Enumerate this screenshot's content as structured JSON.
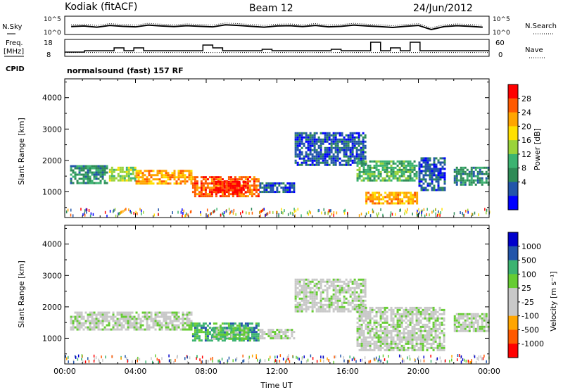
{
  "header": {
    "station": "Kodiak (fitACF)",
    "beam": "Beam 12",
    "date": "24/Jun/2012"
  },
  "top_panels": {
    "nsky_label": "N.Sky",
    "nsearch_label": "N.Search",
    "nsky_ticks": [
      "10^5",
      "10^0"
    ],
    "nsearch_ticks": [
      "10^5",
      "10^0"
    ],
    "freq_label": "Freq.",
    "freq_unit": "[MHz]",
    "freq_ticks": [
      "18",
      "8"
    ],
    "nave_label": "Nave",
    "nave_ticks": [
      "60",
      "0"
    ],
    "cpid_label": "CPID",
    "cpid_text": "normalsound (fast) 157 RF",
    "nsky_trace": [
      2.2,
      2.4,
      2.0,
      2.6,
      2.3,
      2.1,
      2.7,
      2.4,
      2.2,
      2.5,
      2.3,
      2.1,
      2.8,
      2.6,
      2.3,
      2.0,
      2.4,
      2.5,
      2.2,
      2.6,
      2.1,
      2.3,
      2.7,
      2.4,
      2.2,
      1.9,
      2.3,
      2.6,
      1.2,
      2.2,
      2.5,
      2.3,
      2.0
    ],
    "freq_trace_mhz": [
      10,
      10,
      11,
      11,
      11,
      13,
      11,
      13,
      11,
      11,
      11,
      11,
      11,
      11,
      15,
      13,
      11,
      11,
      11,
      11,
      12,
      11,
      11,
      11,
      11,
      11,
      11,
      12,
      11,
      11,
      11,
      17,
      11,
      13,
      11,
      17,
      11,
      11,
      11,
      11,
      11,
      11,
      11
    ],
    "nave_trace": [
      10,
      10,
      10,
      10,
      10,
      10,
      10,
      10,
      10,
      10,
      10,
      10,
      10,
      10,
      10,
      10,
      10,
      10,
      10,
      10,
      10,
      10,
      10,
      10,
      10,
      10,
      10,
      10,
      10,
      10,
      10,
      10,
      10,
      10,
      10,
      10,
      10,
      10,
      10,
      10,
      10,
      10,
      10
    ]
  },
  "chart_data": [
    {
      "type": "heatmap",
      "name": "power-panel",
      "ylabel": "Slant Range [km]",
      "xlabel": "",
      "x_ticks": [
        "00:00",
        "04:00",
        "08:00",
        "12:00",
        "16:00",
        "20:00",
        "00:00"
      ],
      "x_range_hours": [
        0,
        24
      ],
      "y_ticks": [
        1000,
        2000,
        3000,
        4000
      ],
      "ylim": [
        180,
        4600
      ],
      "colorbar": {
        "label": "Power [dB]",
        "ticks": [
          "28",
          "24",
          "20",
          "16",
          "12",
          "8",
          "4"
        ],
        "colors": [
          "#ff0000",
          "#ff5a00",
          "#ffa500",
          "#ffe000",
          "#9ad33a",
          "#3cb371",
          "#2e8b57",
          "#2255aa",
          "#0000ff"
        ]
      },
      "regions": [
        {
          "t0": 0.3,
          "t1": 2.5,
          "r0": 1250,
          "r1": 1850,
          "level": 6
        },
        {
          "t0": 2.5,
          "t1": 4.0,
          "r0": 1300,
          "r1": 1800,
          "level": 4
        },
        {
          "t0": 4.0,
          "t1": 7.2,
          "r0": 1200,
          "r1": 1700,
          "level": 2
        },
        {
          "t0": 7.2,
          "t1": 11.0,
          "r0": 850,
          "r1": 1500,
          "level": 1
        },
        {
          "t0": 8.5,
          "t1": 10.3,
          "r0": 950,
          "r1": 1350,
          "level": 0
        },
        {
          "t0": 11.0,
          "t1": 13.0,
          "r0": 950,
          "r1": 1300,
          "level": 7
        },
        {
          "t0": 13.0,
          "t1": 17.0,
          "r0": 1800,
          "r1": 2900,
          "level": 7
        },
        {
          "t0": 16.5,
          "t1": 20.0,
          "r0": 1300,
          "r1": 2000,
          "level": 5
        },
        {
          "t0": 17.0,
          "t1": 20.0,
          "r0": 600,
          "r1": 1000,
          "level": 2
        },
        {
          "t0": 20.0,
          "t1": 21.5,
          "r0": 1000,
          "r1": 2100,
          "level": 7
        },
        {
          "t0": 22.0,
          "t1": 24.0,
          "r0": 1200,
          "r1": 1800,
          "level": 6
        }
      ]
    },
    {
      "type": "heatmap",
      "name": "velocity-panel",
      "ylabel": "Slant Range [km]",
      "xlabel": "Time UT",
      "x_ticks": [
        "00:00",
        "04:00",
        "08:00",
        "12:00",
        "16:00",
        "20:00",
        "00:00"
      ],
      "x_range_hours": [
        0,
        24
      ],
      "y_ticks": [
        1000,
        2000,
        3000,
        4000
      ],
      "ylim": [
        180,
        4600
      ],
      "colorbar": {
        "label": "Velocity [m s⁻¹]",
        "ticks": [
          "1000",
          "500",
          "100",
          "25",
          "-25",
          "-100",
          "-500",
          "-1000"
        ],
        "colors": [
          "#0000cc",
          "#2255aa",
          "#3cb371",
          "#66cc33",
          "#c8c8c8",
          "#c8c8c8",
          "#ffa500",
          "#ff5a00",
          "#ff0000"
        ]
      },
      "regions": [
        {
          "t0": 0.3,
          "t1": 7.2,
          "r0": 1250,
          "r1": 1850,
          "level": 4
        },
        {
          "t0": 7.2,
          "t1": 11.0,
          "r0": 900,
          "r1": 1500,
          "level": 2
        },
        {
          "t0": 8.3,
          "t1": 10.5,
          "r0": 950,
          "r1": 1350,
          "level": 3
        },
        {
          "t0": 11.0,
          "t1": 13.0,
          "r0": 950,
          "r1": 1300,
          "level": 4
        },
        {
          "t0": 13.0,
          "t1": 17.0,
          "r0": 1800,
          "r1": 2900,
          "level": 4
        },
        {
          "t0": 16.5,
          "t1": 21.5,
          "r0": 600,
          "r1": 2000,
          "level": 4
        },
        {
          "t0": 22.0,
          "t1": 24.0,
          "r0": 1200,
          "r1": 1800,
          "level": 4
        }
      ]
    }
  ]
}
